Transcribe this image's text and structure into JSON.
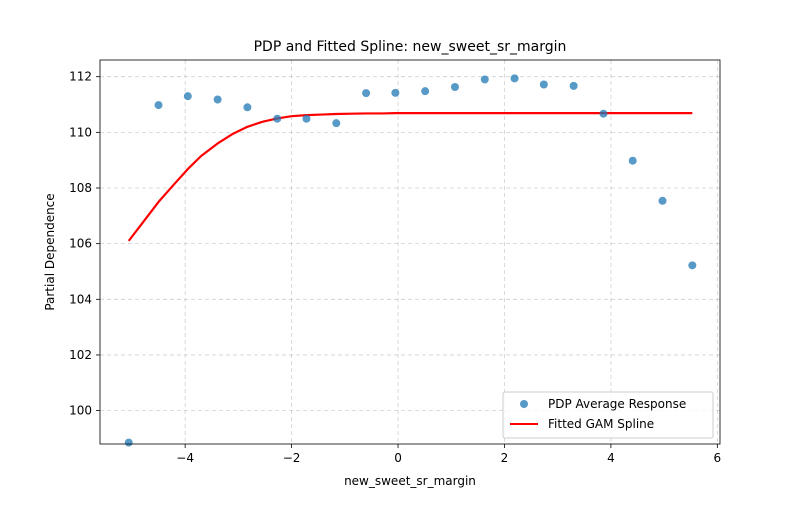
{
  "chart_data": {
    "type": "scatter",
    "title": "PDP and Fitted Spline: new_sweet_sr_margin",
    "xlabel": "new_sweet_sr_margin",
    "ylabel": "Partial Dependence",
    "xlim": [
      -5.6,
      6.05
    ],
    "ylim": [
      98.8,
      112.6
    ],
    "xticks": [
      -4,
      -2,
      0,
      2,
      4,
      6
    ],
    "xtick_labels": [
      "−4",
      "−2",
      "0",
      "2",
      "4",
      "6"
    ],
    "yticks": [
      100,
      102,
      104,
      106,
      108,
      110,
      112
    ],
    "ytick_labels": [
      "100",
      "102",
      "104",
      "106",
      "108",
      "110",
      "112"
    ],
    "grid": true,
    "legend_position": "lower right",
    "series": [
      {
        "name": "PDP Average Response",
        "kind": "scatter",
        "color": "#1f77b4",
        "x": [
          -5.06,
          -4.5,
          -3.95,
          -3.39,
          -2.83,
          -2.27,
          -1.72,
          -1.16,
          -0.6,
          -0.05,
          0.51,
          1.07,
          1.63,
          2.19,
          2.74,
          3.3,
          3.86,
          4.41,
          4.97,
          5.53
        ],
        "y": [
          98.85,
          110.98,
          111.3,
          111.18,
          110.9,
          110.49,
          110.49,
          110.33,
          111.41,
          111.42,
          111.48,
          111.63,
          111.9,
          111.94,
          111.72,
          111.67,
          110.67,
          108.98,
          107.54,
          105.22
        ]
      },
      {
        "name": "Fitted GAM Spline",
        "kind": "line",
        "color": "#ff0000",
        "x": [
          -5.06,
          -4.8,
          -4.5,
          -4.2,
          -3.95,
          -3.7,
          -3.39,
          -3.1,
          -2.83,
          -2.55,
          -2.27,
          -2.0,
          -1.72,
          -1.44,
          -1.16,
          -0.88,
          -0.6,
          -0.3,
          -0.05,
          0.51,
          1.07,
          2.0,
          3.0,
          4.0,
          5.0,
          5.53
        ],
        "y": [
          106.1,
          106.75,
          107.5,
          108.15,
          108.68,
          109.15,
          109.6,
          109.95,
          110.2,
          110.38,
          110.5,
          110.58,
          110.62,
          110.64,
          110.66,
          110.67,
          110.68,
          110.68,
          110.69,
          110.69,
          110.69,
          110.69,
          110.69,
          110.69,
          110.69,
          110.69
        ]
      }
    ]
  }
}
